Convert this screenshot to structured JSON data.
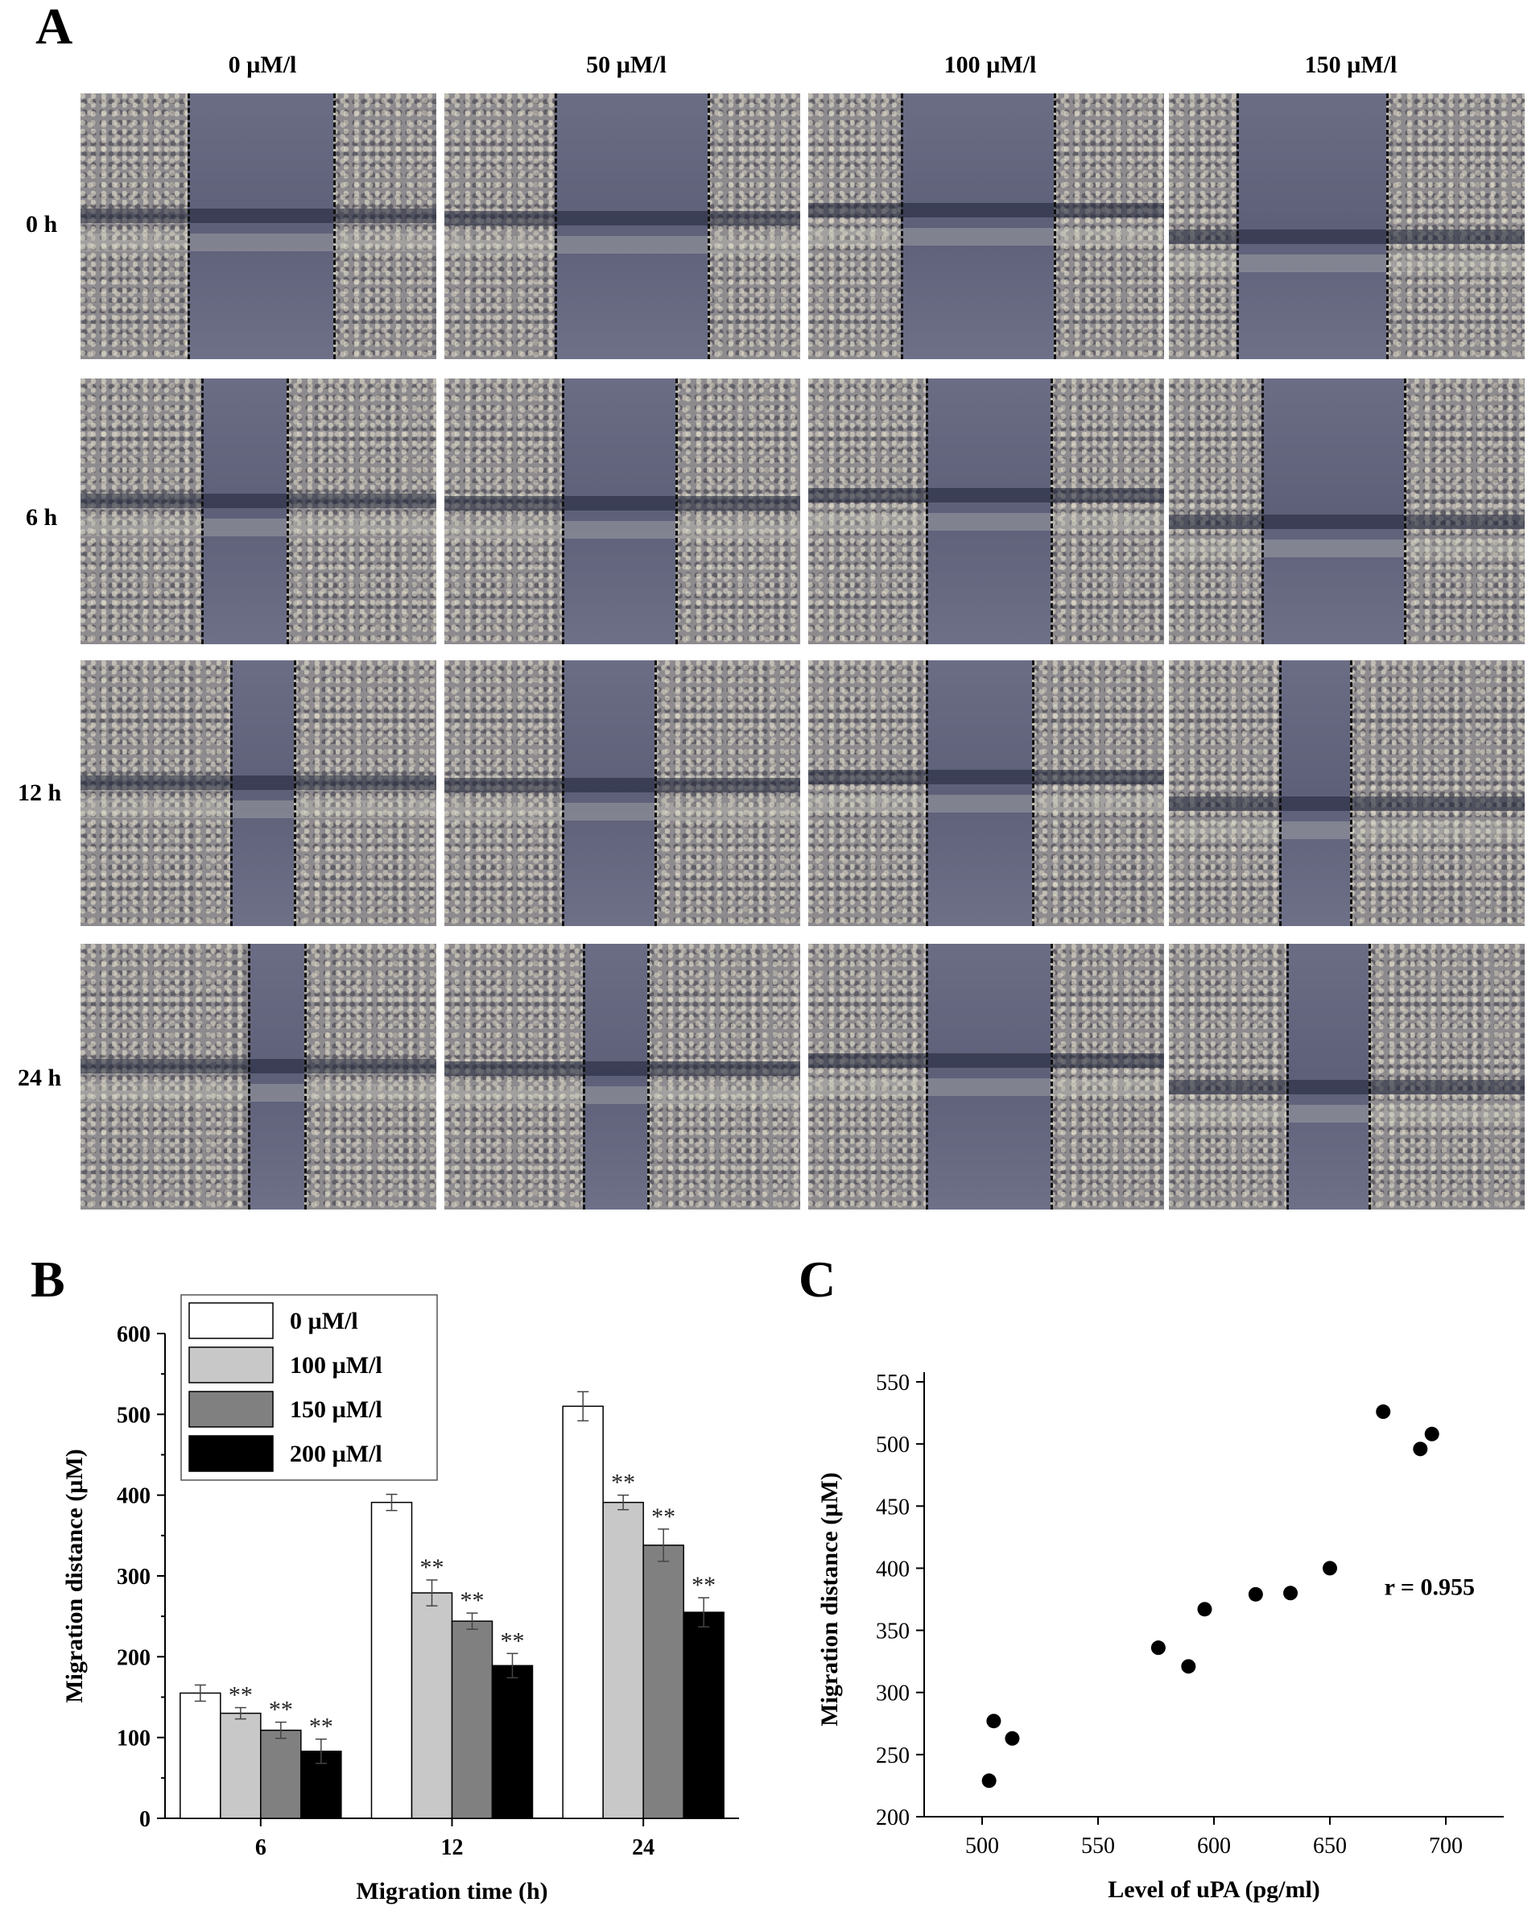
{
  "panel_a": {
    "letter": "A",
    "columns": [
      "0 µM/l",
      "50 µM/l",
      "100 µM/l",
      "150 µM/l"
    ],
    "rows": [
      "0 h",
      "6 h",
      "12 h",
      "24 h"
    ],
    "image_description": "Phase-contrast micrographs of wound-healing scratch assay; dashed lines mark wound edges"
  },
  "panel_b": {
    "letter": "B"
  },
  "panel_c": {
    "letter": "C"
  },
  "chart_data": [
    {
      "type": "bar",
      "title": "",
      "xlabel": "Migration time (h)",
      "ylabel": "Migration distance (µM)",
      "categories": [
        "6",
        "12",
        "24"
      ],
      "ylim": [
        0,
        600
      ],
      "yticks": [
        0,
        100,
        200,
        300,
        400,
        500,
        600
      ],
      "legend": "top-left",
      "significance_marker": "**",
      "series": [
        {
          "name": "0 µM/l",
          "color": "#ffffff",
          "values": [
            155,
            391,
            510
          ],
          "errors": [
            10,
            10,
            18
          ],
          "significant": [
            false,
            false,
            false
          ]
        },
        {
          "name": "100 µM/l",
          "color": "#c8c8c8",
          "values": [
            130,
            279,
            391
          ],
          "errors": [
            7,
            16,
            9
          ],
          "significant": [
            true,
            true,
            true
          ]
        },
        {
          "name": "150 µM/l",
          "color": "#808080",
          "values": [
            109,
            244,
            338
          ],
          "errors": [
            10,
            10,
            20
          ],
          "significant": [
            true,
            true,
            true
          ]
        },
        {
          "name": "200 µM/l",
          "color": "#000000",
          "values": [
            83,
            189,
            255
          ],
          "errors": [
            15,
            15,
            18
          ],
          "significant": [
            true,
            true,
            true
          ]
        }
      ]
    },
    {
      "type": "scatter",
      "title": "",
      "xlabel": "Level of uPA (pg/ml)",
      "ylabel": "Migration distance (µM)",
      "xlim": [
        475,
        725
      ],
      "ylim": [
        200,
        550
      ],
      "xticks": [
        500,
        550,
        600,
        650,
        700
      ],
      "yticks": [
        200,
        250,
        300,
        350,
        400,
        450,
        500,
        550
      ],
      "annotation": "r = 0.955",
      "points": [
        {
          "x": 503,
          "y": 229
        },
        {
          "x": 505,
          "y": 277
        },
        {
          "x": 513,
          "y": 263
        },
        {
          "x": 576,
          "y": 336
        },
        {
          "x": 589,
          "y": 321
        },
        {
          "x": 596,
          "y": 367
        },
        {
          "x": 618,
          "y": 379
        },
        {
          "x": 633,
          "y": 380
        },
        {
          "x": 650,
          "y": 400
        },
        {
          "x": 673,
          "y": 526
        },
        {
          "x": 689,
          "y": 496
        },
        {
          "x": 694,
          "y": 508
        }
      ]
    }
  ]
}
